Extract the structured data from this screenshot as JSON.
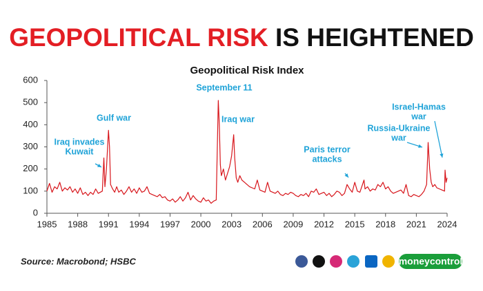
{
  "chart_data": {
    "type": "line",
    "title_highlight": "GEOPOLITICAL RISK",
    "title_rest": "IS HEIGHTENED",
    "subtitle": "Geopolitical Risk Index",
    "source": "Source: Macrobond; HSBC",
    "brand": "moneycontrol",
    "x": [
      1985.0,
      1985.25,
      1985.5,
      1985.75,
      1986.0,
      1986.25,
      1986.5,
      1986.75,
      1987.0,
      1987.25,
      1987.5,
      1987.75,
      1988.0,
      1988.25,
      1988.5,
      1988.75,
      1989.0,
      1989.25,
      1989.5,
      1989.75,
      1990.0,
      1990.4,
      1990.55,
      1990.65,
      1990.8,
      1991.0,
      1991.1,
      1991.2,
      1991.4,
      1991.6,
      1991.8,
      1992.0,
      1992.25,
      1992.5,
      1992.75,
      1993.0,
      1993.25,
      1993.5,
      1993.75,
      1994.0,
      1994.25,
      1994.5,
      1994.75,
      1995.0,
      1995.25,
      1995.5,
      1995.75,
      1996.0,
      1996.25,
      1996.5,
      1996.75,
      1997.0,
      1997.25,
      1997.5,
      1997.75,
      1998.0,
      1998.25,
      1998.5,
      1998.75,
      1999.0,
      1999.25,
      1999.5,
      1999.75,
      2000.0,
      2000.25,
      2000.5,
      2000.75,
      2001.0,
      2001.25,
      2001.5,
      2001.7,
      2001.8,
      2001.9,
      2002.0,
      2002.2,
      2002.4,
      2002.6,
      2002.8,
      2003.0,
      2003.2,
      2003.3,
      2003.45,
      2003.6,
      2003.8,
      2004.0,
      2004.25,
      2004.5,
      2004.75,
      2005.0,
      2005.25,
      2005.5,
      2005.75,
      2006.0,
      2006.25,
      2006.5,
      2006.75,
      2007.0,
      2007.25,
      2007.5,
      2007.75,
      2008.0,
      2008.25,
      2008.5,
      2008.75,
      2009.0,
      2009.25,
      2009.5,
      2009.75,
      2010.0,
      2010.25,
      2010.5,
      2010.75,
      2011.0,
      2011.25,
      2011.5,
      2011.75,
      2012.0,
      2012.25,
      2012.5,
      2012.75,
      2013.0,
      2013.25,
      2013.5,
      2013.75,
      2014.0,
      2014.25,
      2014.5,
      2014.75,
      2015.0,
      2015.25,
      2015.5,
      2015.9,
      2016.0,
      2016.25,
      2016.5,
      2016.75,
      2017.0,
      2017.25,
      2017.5,
      2017.75,
      2018.0,
      2018.25,
      2018.5,
      2018.75,
      2019.0,
      2019.25,
      2019.5,
      2019.75,
      2020.0,
      2020.25,
      2020.5,
      2020.75,
      2021.0,
      2021.25,
      2021.5,
      2021.75,
      2022.0,
      2022.15,
      2022.3,
      2022.45,
      2022.6,
      2022.8,
      2023.0,
      2023.25,
      2023.5,
      2023.75,
      2023.8,
      2023.9,
      2024.0
    ],
    "series": [
      {
        "color": "#d7141a",
        "values": [
          100,
          135,
          95,
          120,
          110,
          140,
          100,
          115,
          105,
          120,
          95,
          110,
          90,
          115,
          85,
          95,
          80,
          95,
          85,
          110,
          90,
          100,
          250,
          120,
          200,
          375,
          300,
          130,
          110,
          95,
          120,
          95,
          105,
          85,
          100,
          120,
          95,
          110,
          90,
          115,
          95,
          100,
          120,
          90,
          85,
          80,
          75,
          85,
          70,
          75,
          60,
          55,
          65,
          50,
          60,
          75,
          55,
          70,
          95,
          60,
          80,
          65,
          55,
          50,
          70,
          55,
          60,
          45,
          55,
          60,
          510,
          400,
          220,
          170,
          200,
          150,
          180,
          210,
          260,
          355,
          250,
          160,
          140,
          170,
          150,
          140,
          130,
          120,
          115,
          110,
          150,
          105,
          100,
          95,
          140,
          100,
          95,
          90,
          100,
          85,
          80,
          90,
          85,
          95,
          90,
          80,
          75,
          85,
          80,
          90,
          75,
          100,
          95,
          110,
          85,
          90,
          95,
          80,
          90,
          75,
          85,
          100,
          95,
          80,
          90,
          130,
          110,
          95,
          140,
          100,
          95,
          150,
          110,
          120,
          100,
          110,
          105,
          130,
          120,
          140,
          110,
          120,
          100,
          90,
          95,
          100,
          105,
          90,
          130,
          80,
          75,
          85,
          80,
          75,
          85,
          100,
          130,
          320,
          200,
          140,
          120,
          130,
          115,
          110,
          105,
          100,
          195,
          140,
          160
        ]
      }
    ],
    "xlim": [
      1985,
      2024
    ],
    "xticks": [
      1985,
      1988,
      1991,
      1994,
      1997,
      2000,
      2003,
      2006,
      2009,
      2012,
      2015,
      2018,
      2021,
      2024
    ],
    "ylim": [
      0,
      600
    ],
    "yticks": [
      0,
      100,
      200,
      300,
      400,
      500,
      600
    ],
    "annotations": [
      {
        "lines": [
          "Iraq invades",
          "Kuwait"
        ]
      },
      {
        "lines": [
          "Gulf war"
        ]
      },
      {
        "lines": [
          "September 11"
        ]
      },
      {
        "lines": [
          "Iraq war"
        ]
      },
      {
        "lines": [
          "Paris terror",
          "attacks"
        ]
      },
      {
        "lines": [
          "Russia-Ukraine",
          "war"
        ]
      },
      {
        "lines": [
          "Israel-Hamas",
          "war"
        ]
      }
    ]
  }
}
